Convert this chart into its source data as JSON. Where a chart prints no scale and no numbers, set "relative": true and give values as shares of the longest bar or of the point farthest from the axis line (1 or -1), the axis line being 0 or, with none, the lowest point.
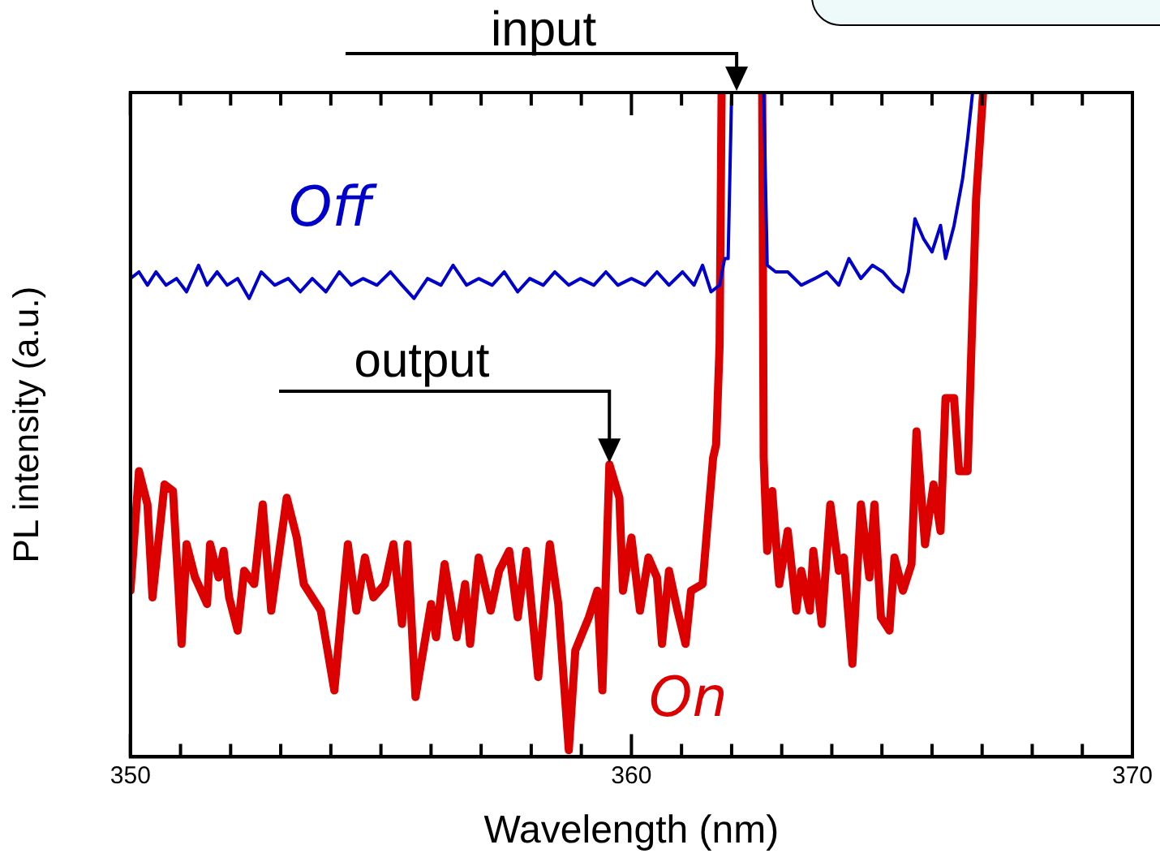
{
  "chart_data": {
    "type": "line",
    "relative": true,
    "xlabel": "Wavelength (nm)",
    "ylabel": "PL intensity (a.u.)",
    "xlim": [
      350,
      370
    ],
    "xticks": [
      350,
      {
        "value": 351,
        "label": null
      },
      {
        "value": 352,
        "label": null
      },
      {
        "value": 353,
        "label": null
      },
      {
        "value": 354,
        "label": null
      },
      {
        "value": 355,
        "label": null
      },
      {
        "value": 356,
        "label": null
      },
      {
        "value": 357,
        "label": null
      },
      {
        "value": 358,
        "label": null
      },
      {
        "value": 359,
        "label": null
      },
      360,
      {
        "value": 361,
        "label": null
      },
      {
        "value": 362,
        "label": null
      },
      {
        "value": 363,
        "label": null
      },
      {
        "value": 364,
        "label": null
      },
      {
        "value": 365,
        "label": null
      },
      {
        "value": 366,
        "label": null
      },
      {
        "value": 367,
        "label": null
      },
      {
        "value": 368,
        "label": null
      },
      {
        "value": 369,
        "label": null
      },
      370
    ],
    "grid": false,
    "legend": false,
    "marker": "none",
    "line_style": "solid",
    "series": [
      {
        "name": "Off",
        "color": "#0000cc",
        "x": [
          350.0,
          350.17,
          350.34,
          350.51,
          350.71,
          350.92,
          351.12,
          351.36,
          351.53,
          351.73,
          351.93,
          352.14,
          352.37,
          352.61,
          352.88,
          353.15,
          353.39,
          353.63,
          353.9,
          354.17,
          354.41,
          354.64,
          354.92,
          355.19,
          355.42,
          355.66,
          355.93,
          356.2,
          356.44,
          356.71,
          356.95,
          357.22,
          357.46,
          357.73,
          357.97,
          358.24,
          358.47,
          358.75,
          358.98,
          359.25,
          359.49,
          359.73,
          360.0,
          360.27,
          360.51,
          360.75,
          361.02,
          361.25,
          361.42,
          361.59,
          361.76,
          361.86,
          361.93,
          362.0,
          362.2,
          362.64,
          362.71,
          362.88,
          363.12,
          363.39,
          363.66,
          363.9,
          364.14,
          364.34,
          364.58,
          364.81,
          365.02,
          365.25,
          365.42,
          365.53,
          365.66,
          365.83,
          366.0,
          366.17,
          366.27,
          366.44,
          366.61,
          366.71,
          366.81
        ],
        "values": [
          0.72,
          0.73,
          0.71,
          0.73,
          0.71,
          0.72,
          0.7,
          0.74,
          0.71,
          0.73,
          0.71,
          0.72,
          0.69,
          0.73,
          0.71,
          0.72,
          0.7,
          0.72,
          0.7,
          0.73,
          0.71,
          0.72,
          0.71,
          0.73,
          0.71,
          0.69,
          0.72,
          0.71,
          0.74,
          0.71,
          0.72,
          0.71,
          0.73,
          0.7,
          0.72,
          0.71,
          0.73,
          0.71,
          0.72,
          0.71,
          0.73,
          0.71,
          0.72,
          0.71,
          0.73,
          0.71,
          0.73,
          0.71,
          0.74,
          0.7,
          0.71,
          0.75,
          0.75,
          1.0,
          null,
          1.0,
          0.74,
          0.73,
          0.73,
          0.71,
          0.72,
          0.73,
          0.71,
          0.75,
          0.72,
          0.74,
          0.73,
          0.71,
          0.7,
          0.73,
          0.81,
          0.78,
          0.76,
          0.8,
          0.75,
          0.8,
          0.87,
          0.93,
          1.0
        ]
      },
      {
        "name": "On",
        "color": "#dd0000",
        "x": [
          350.0,
          350.17,
          350.34,
          350.44,
          350.68,
          350.85,
          351.02,
          351.12,
          351.29,
          351.53,
          351.59,
          351.76,
          351.86,
          351.97,
          352.14,
          352.27,
          352.47,
          352.64,
          352.81,
          353.12,
          353.32,
          353.46,
          353.8,
          354.07,
          354.34,
          354.51,
          354.68,
          354.85,
          355.08,
          355.25,
          355.42,
          355.53,
          355.69,
          356.0,
          356.1,
          356.27,
          356.51,
          356.68,
          356.78,
          356.95,
          357.19,
          357.36,
          357.56,
          357.73,
          357.9,
          358.14,
          358.37,
          358.54,
          358.75,
          358.88,
          359.15,
          359.32,
          359.42,
          359.56,
          359.76,
          359.83,
          360.0,
          360.17,
          360.34,
          360.51,
          360.61,
          360.75,
          360.92,
          361.08,
          361.19,
          361.42,
          361.53,
          361.63,
          361.69,
          361.76,
          361.8,
          362.2,
          362.61,
          362.64,
          362.71,
          362.81,
          362.95,
          363.12,
          363.29,
          363.39,
          363.56,
          363.63,
          363.8,
          363.97,
          364.14,
          364.24,
          364.41,
          364.58,
          364.75,
          364.85,
          364.98,
          365.15,
          365.25,
          365.42,
          365.59,
          365.69,
          365.86,
          366.03,
          366.17,
          366.27,
          366.44,
          366.54,
          366.71,
          366.78,
          366.88,
          367.02
        ],
        "values": [
          0.25,
          0.43,
          0.38,
          0.24,
          0.41,
          0.4,
          0.17,
          0.32,
          0.27,
          0.23,
          0.32,
          0.27,
          0.31,
          0.24,
          0.19,
          0.28,
          0.26,
          0.38,
          0.22,
          0.39,
          0.33,
          0.26,
          0.22,
          0.1,
          0.32,
          0.22,
          0.3,
          0.24,
          0.26,
          0.32,
          0.2,
          0.32,
          0.09,
          0.23,
          0.18,
          0.29,
          0.18,
          0.26,
          0.17,
          0.3,
          0.22,
          0.28,
          0.31,
          0.21,
          0.31,
          0.12,
          0.32,
          0.23,
          0.01,
          0.16,
          0.21,
          0.25,
          0.1,
          0.44,
          0.39,
          0.25,
          0.33,
          0.22,
          0.3,
          0.27,
          0.17,
          0.28,
          0.22,
          0.17,
          0.25,
          0.26,
          0.36,
          0.45,
          0.47,
          0.62,
          1.0,
          null,
          1.0,
          0.45,
          0.31,
          0.4,
          0.26,
          0.34,
          0.22,
          0.28,
          0.22,
          0.31,
          0.2,
          0.38,
          0.28,
          0.3,
          0.14,
          0.38,
          0.27,
          0.38,
          0.21,
          0.19,
          0.3,
          0.25,
          0.29,
          0.49,
          0.32,
          0.41,
          0.34,
          0.54,
          0.54,
          0.43,
          0.43,
          0.6,
          0.84,
          1.0
        ]
      }
    ],
    "annotations": [
      {
        "text": "input",
        "x": 362.1,
        "y": 1.0
      },
      {
        "text": "output",
        "x": 359.56,
        "y": 0.44
      }
    ]
  }
}
